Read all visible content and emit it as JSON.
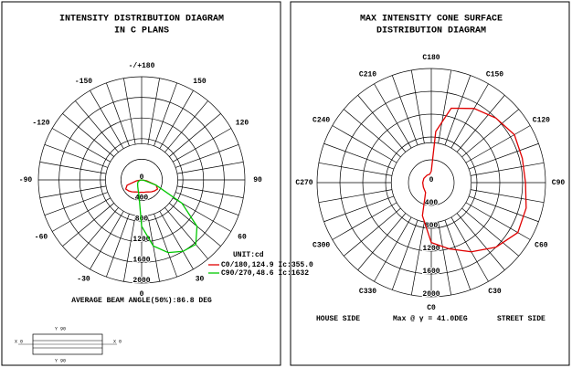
{
  "chart_data": [
    {
      "type": "polar",
      "title": [
        "INTENSITY DISTRIBUTION DIAGRAM",
        "IN C PLANS"
      ],
      "angle_ticks": [
        {
          "value": 180,
          "label": "-/+180"
        },
        150,
        120,
        90,
        60,
        30,
        0,
        -30,
        -60,
        -90,
        -120,
        -150
      ],
      "rlim": [
        0,
        2000
      ],
      "rticks": [
        0,
        400,
        800,
        1200,
        1600,
        2000
      ],
      "series": [
        {
          "name": "C0/180,124.9 Ic:355.0",
          "color": "#e00000",
          "x": [
            -90,
            -80,
            -70,
            -60,
            -50,
            -40,
            -30,
            -20,
            -10,
            0,
            10,
            20,
            30,
            40,
            50,
            60,
            70,
            80,
            90
          ],
          "values": [
            0,
            100,
            300,
            355,
            330,
            300,
            270,
            250,
            245,
            240,
            245,
            250,
            270,
            300,
            330,
            355,
            300,
            100,
            0
          ]
        },
        {
          "name": "C90/270,48.6 Ic:1632",
          "color": "#00c800",
          "x": [
            -90,
            -80,
            -70,
            -60,
            -50,
            -40,
            -30,
            -20,
            -10,
            0,
            10,
            20,
            30,
            40,
            50,
            60,
            70,
            80,
            90
          ],
          "values": [
            0,
            20,
            50,
            80,
            100,
            120,
            150,
            200,
            300,
            900,
            1300,
            1500,
            1600,
            1632,
            1400,
            900,
            300,
            50,
            0
          ]
        }
      ],
      "annotations": [
        "UNIT:cd",
        "AVERAGE BEAM ANGLE(50%):86.8 DEG"
      ]
    },
    {
      "type": "polar",
      "title": [
        "MAX INTENSITY CONE SURFACE",
        "DISTRIBUTION DIAGRAM"
      ],
      "angle_ticks": [
        {
          "value": 180,
          "label": "C180"
        },
        {
          "value": 150,
          "label": "C150"
        },
        {
          "value": 120,
          "label": "C120"
        },
        {
          "value": 90,
          "label": "C90"
        },
        {
          "value": 60,
          "label": "C60"
        },
        {
          "value": 30,
          "label": "C30"
        },
        {
          "value": 0,
          "label": "C0"
        },
        {
          "value": -30,
          "label": "C330"
        },
        {
          "value": -60,
          "label": "C300"
        },
        {
          "value": -90,
          "label": "C270"
        },
        {
          "value": -120,
          "label": "C240"
        },
        {
          "value": -150,
          "label": "C210"
        }
      ],
      "rlim": [
        0,
        2000
      ],
      "rticks": [
        0,
        400,
        800,
        1200,
        1600,
        2000
      ],
      "series": [
        {
          "color": "#e00000",
          "x": [
            0,
            15,
            30,
            45,
            60,
            75,
            90,
            105,
            120,
            135,
            150,
            165,
            175,
            180,
            190,
            210,
            240,
            270,
            300,
            330,
            345,
            360
          ],
          "values": [
            1050,
            1200,
            1400,
            1600,
            1750,
            1720,
            1650,
            1650,
            1680,
            1600,
            1500,
            1350,
            900,
            200,
            150,
            150,
            150,
            150,
            160,
            200,
            600,
            1050
          ]
        }
      ],
      "annotations": [
        "HOUSE SIDE",
        "Max @ γ = 41.0DEG",
        "STREET SIDE"
      ]
    }
  ],
  "luminaire_sketch": {
    "labels": [
      "Y 90",
      "X 0",
      "X 0",
      "Y 90"
    ]
  }
}
